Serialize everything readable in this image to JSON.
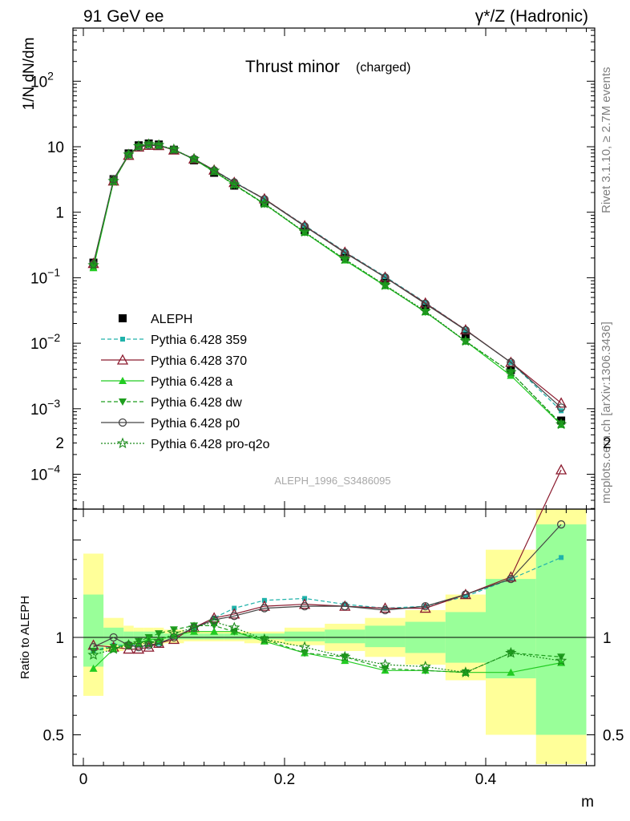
{
  "header": {
    "left": "91 GeV ee",
    "right": "γ*/Z (Hadronic)"
  },
  "side_text": {
    "rivet": "Rivet 3.1.10, ≥ 2.7M events",
    "mcplots": "mcplots.cern.ch [arXiv:1306.3436]"
  },
  "chart_data": [
    {
      "type": "line",
      "title": "Thrust minor",
      "title_suffix": "(charged)",
      "ylabel": "1/N dN/dm",
      "xlabel": "m",
      "yscale": "log",
      "ylim": [
        0.0003,
        700
      ],
      "xlim": [
        -0.012,
        0.5
      ],
      "analysis_label": "ALEPH_1996_S3486095",
      "y_ticks": [
        {
          "v": 0.0001,
          "base": "10",
          "exp": "−4"
        },
        {
          "v": 0.001,
          "base": "10",
          "exp": "−3"
        },
        {
          "v": 0.01,
          "base": "10",
          "exp": "−2"
        },
        {
          "v": 0.1,
          "base": "10",
          "exp": "−1"
        },
        {
          "v": 1,
          "base": "1",
          "exp": ""
        },
        {
          "v": 10,
          "base": "10",
          "exp": ""
        },
        {
          "v": 100,
          "base": "10",
          "exp": "2"
        }
      ],
      "legend_position": "left, middle",
      "x": [
        0.01,
        0.03,
        0.045,
        0.055,
        0.065,
        0.075,
        0.09,
        0.11,
        0.13,
        0.15,
        0.18,
        0.22,
        0.26,
        0.3,
        0.34,
        0.38,
        0.425,
        0.475
      ],
      "series": [
        {
          "name": "ALEPH",
          "color": "#000000",
          "marker": "square",
          "dash": "none",
          "values": [
            0.17,
            3.2,
            7.9,
            10.5,
            11.2,
            10.8,
            9.0,
            6.2,
            4.0,
            2.55,
            1.38,
            0.53,
            0.21,
            0.09,
            0.036,
            0.013,
            0.0039,
            0.00066
          ]
        },
        {
          "name": "Pythia 6.428 359",
          "color": "#20b2aa",
          "marker": "smallsquare",
          "dash": "5,3",
          "values": [
            0.16,
            3.0,
            7.6,
            10.0,
            10.7,
            10.4,
            9.0,
            6.5,
            4.4,
            2.9,
            1.6,
            0.63,
            0.25,
            0.104,
            0.042,
            0.016,
            0.0051,
            0.00093
          ]
        },
        {
          "name": "Pythia 6.428 370",
          "color": "#8b1a2e",
          "marker": "triangle-open",
          "dash": "none",
          "values": [
            0.165,
            3.0,
            7.4,
            9.9,
            10.5,
            10.4,
            8.9,
            6.5,
            4.4,
            2.85,
            1.6,
            0.62,
            0.245,
            0.102,
            0.041,
            0.016,
            0.0051,
            0.00122
          ]
        },
        {
          "name": "Pythia 6.428 a",
          "color": "#22cc22",
          "marker": "triangle",
          "dash": "none",
          "values": [
            0.141,
            2.95,
            7.6,
            10.1,
            10.9,
            10.5,
            9.0,
            6.4,
            4.15,
            2.65,
            1.34,
            0.49,
            0.185,
            0.075,
            0.03,
            0.0107,
            0.0032,
            0.00057
          ]
        },
        {
          "name": "Pythia 6.428 dw",
          "color": "#1e9e1e",
          "marker": "triangle-down",
          "dash": "5,3",
          "values": [
            0.155,
            3.0,
            7.5,
            10.0,
            10.8,
            10.5,
            9.1,
            6.4,
            4.2,
            2.6,
            1.33,
            0.49,
            0.19,
            0.076,
            0.03,
            0.0107,
            0.0036,
            0.00059
          ]
        },
        {
          "name": "Pythia 6.428 p0",
          "color": "#444444",
          "marker": "circle-open",
          "dash": "none",
          "values": [
            0.162,
            3.2,
            7.6,
            10.0,
            10.6,
            10.4,
            9.0,
            6.5,
            4.35,
            2.85,
            1.58,
            0.61,
            0.24,
            0.101,
            0.04,
            0.0158,
            0.0051,
            0.00104
          ]
        },
        {
          "name": "Pythia 6.428 pro-q2o",
          "color": "#1a8a1a",
          "marker": "star-open",
          "dash": "2,2",
          "values": [
            0.155,
            3.0,
            7.6,
            10.2,
            10.9,
            10.6,
            9.1,
            6.5,
            4.3,
            2.65,
            1.36,
            0.5,
            0.192,
            0.077,
            0.031,
            0.0108,
            0.0036,
            0.00058
          ]
        }
      ]
    },
    {
      "type": "line",
      "ylabel": "Ratio to ALEPH",
      "xlabel": "m",
      "ylim": [
        0.35,
        2.3
      ],
      "xlim": [
        -0.012,
        0.5
      ],
      "x_ticks": [
        {
          "v": 0,
          "label": "0"
        },
        {
          "v": 0.2,
          "label": "0.2"
        },
        {
          "v": 0.4,
          "label": "0.4"
        }
      ],
      "y_ticks": [
        {
          "v": 0.5,
          "label": "0.5"
        },
        {
          "v": 1,
          "label": "1"
        },
        {
          "v": 2,
          "label": "2"
        }
      ],
      "bin_edges": [
        0,
        0.02,
        0.04,
        0.05,
        0.06,
        0.07,
        0.08,
        0.1,
        0.12,
        0.14,
        0.16,
        0.2,
        0.24,
        0.28,
        0.32,
        0.36,
        0.4,
        0.45,
        0.5
      ],
      "band_yellow": [
        [
          0.7,
          1.43
        ],
        [
          0.93,
          1.1
        ],
        [
          0.95,
          1.06
        ],
        [
          0.96,
          1.05
        ],
        [
          0.96,
          1.05
        ],
        [
          0.96,
          1.05
        ],
        [
          0.97,
          1.04
        ],
        [
          0.98,
          1.03
        ],
        [
          0.98,
          1.03
        ],
        [
          0.98,
          1.03
        ],
        [
          0.97,
          1.03
        ],
        [
          0.96,
          1.05
        ],
        [
          0.93,
          1.07
        ],
        [
          0.9,
          1.1
        ],
        [
          0.86,
          1.14
        ],
        [
          0.78,
          1.22
        ],
        [
          0.5,
          1.45
        ],
        [
          0.35,
          2.0
        ]
      ],
      "band_green": [
        [
          0.85,
          1.22
        ],
        [
          0.96,
          1.05
        ],
        [
          0.97,
          1.03
        ],
        [
          0.98,
          1.03
        ],
        [
          0.98,
          1.03
        ],
        [
          0.98,
          1.03
        ],
        [
          0.99,
          1.02
        ],
        [
          0.99,
          1.02
        ],
        [
          0.99,
          1.02
        ],
        [
          0.99,
          1.02
        ],
        [
          0.99,
          1.02
        ],
        [
          0.98,
          1.03
        ],
        [
          0.97,
          1.04
        ],
        [
          0.95,
          1.06
        ],
        [
          0.92,
          1.08
        ],
        [
          0.87,
          1.13
        ],
        [
          0.79,
          1.3
        ],
        [
          0.5,
          1.58
        ]
      ],
      "ratio_series": [
        {
          "name": "Pythia 6.428 359",
          "values": [
            0.93,
            0.96,
            0.96,
            0.96,
            0.96,
            0.97,
            1.0,
            1.05,
            1.1,
            1.15,
            1.19,
            1.2,
            1.17,
            1.15,
            1.16,
            1.21,
            1.3,
            1.41
          ]
        },
        {
          "name": "Pythia 6.428 370",
          "values": [
            0.96,
            0.95,
            0.94,
            0.94,
            0.95,
            0.97,
            0.99,
            1.05,
            1.1,
            1.12,
            1.16,
            1.17,
            1.16,
            1.15,
            1.15,
            1.22,
            1.31,
            1.86
          ]
        },
        {
          "name": "Pythia 6.428 a",
          "values": [
            0.84,
            0.94,
            0.97,
            0.97,
            0.99,
            0.99,
            1.01,
            1.03,
            1.03,
            1.03,
            0.98,
            0.92,
            0.88,
            0.83,
            0.83,
            0.82,
            0.82,
            0.87
          ]
        },
        {
          "name": "Pythia 6.428 dw",
          "values": [
            0.93,
            0.95,
            0.96,
            0.98,
            1.0,
            1.02,
            1.04,
            1.06,
            1.06,
            1.03,
            0.99,
            0.92,
            0.9,
            0.84,
            0.83,
            0.82,
            0.92,
            0.9
          ]
        },
        {
          "name": "Pythia 6.428 p0",
          "values": [
            0.95,
            1.0,
            0.96,
            0.95,
            0.96,
            0.97,
            1.0,
            1.05,
            1.09,
            1.11,
            1.15,
            1.16,
            1.16,
            1.14,
            1.16,
            1.22,
            1.3,
            1.58
          ]
        },
        {
          "name": "Pythia 6.428 pro-q2o",
          "values": [
            0.91,
            0.94,
            0.96,
            0.97,
            0.97,
            0.98,
            1.02,
            1.05,
            1.08,
            1.05,
            0.99,
            0.95,
            0.9,
            0.86,
            0.85,
            0.82,
            0.92,
            0.88
          ]
        }
      ]
    }
  ]
}
